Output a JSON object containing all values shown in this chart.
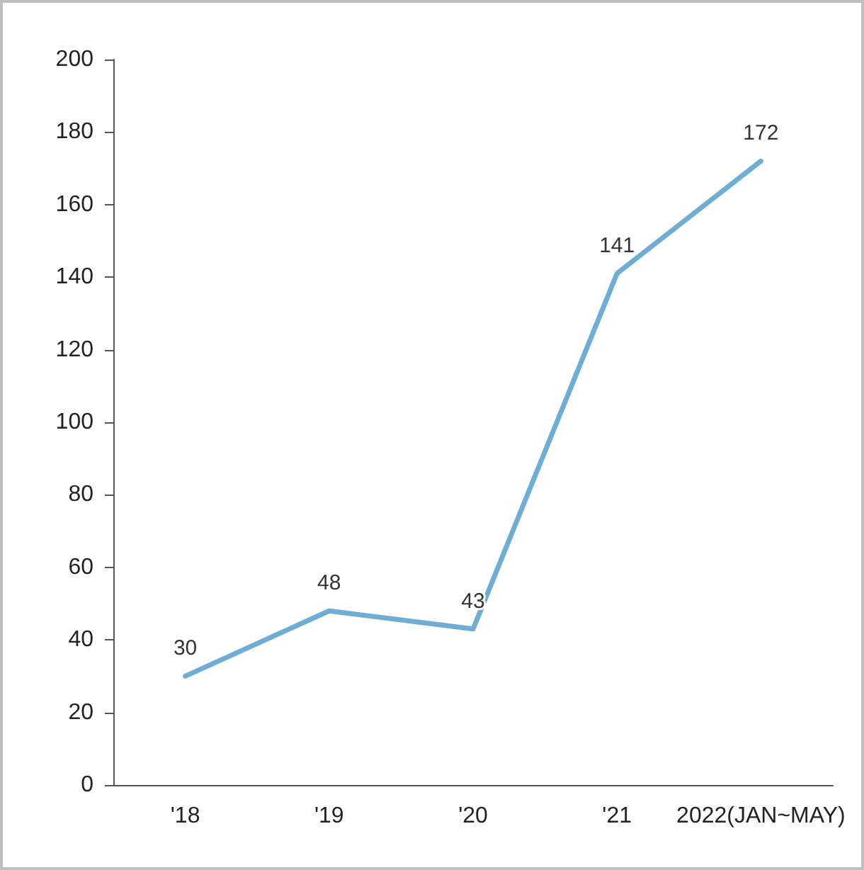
{
  "chart_data": {
    "type": "line",
    "categories": [
      "'18",
      "'19",
      "'20",
      "'21",
      "2022(JAN~MAY)"
    ],
    "series": [
      {
        "color": "#6eadd4",
        "values": [
          30,
          48,
          43,
          141,
          172
        ]
      }
    ],
    "ylim": [
      0,
      200
    ],
    "yticks": [
      0,
      20,
      40,
      60,
      80,
      100,
      120,
      140,
      160,
      180,
      200
    ],
    "grid": false,
    "data_labels": true,
    "marker": "none",
    "line_style": "solid"
  }
}
